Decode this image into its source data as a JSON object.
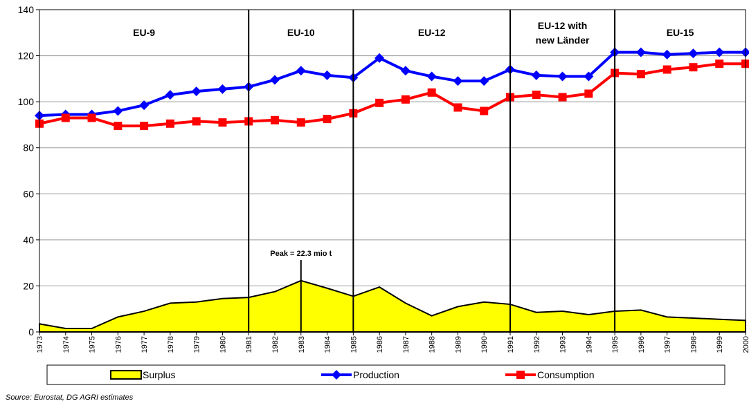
{
  "chart_data": {
    "type": "line",
    "x": [
      1973,
      1974,
      1975,
      1976,
      1977,
      1978,
      1979,
      1980,
      1981,
      1982,
      1983,
      1984,
      1985,
      1986,
      1987,
      1988,
      1989,
      1990,
      1991,
      1992,
      1993,
      1994,
      1995,
      1996,
      1997,
      1998,
      1999,
      2000
    ],
    "xlim": [
      1973,
      2000
    ],
    "ylim": [
      0,
      140
    ],
    "yticks": [
      0,
      20,
      40,
      60,
      80,
      100,
      120,
      140
    ],
    "grid": true,
    "series": [
      {
        "name": "Surplus",
        "kind": "area",
        "color": "#ffff00",
        "values": [
          3.5,
          1.5,
          1.5,
          6.5,
          9,
          12.5,
          13,
          14.5,
          15,
          17.5,
          22.3,
          19,
          15.5,
          19.5,
          12.5,
          7,
          11,
          13,
          12,
          8.5,
          9,
          7.5,
          9,
          9.5,
          6.5,
          6,
          5.5,
          5
        ]
      },
      {
        "name": "Production",
        "kind": "line",
        "marker": "diamond",
        "color": "#0000ff",
        "values": [
          94,
          94.5,
          94.5,
          96,
          98.5,
          103,
          104.5,
          105.5,
          106.5,
          109.5,
          113.5,
          111.5,
          110.5,
          119,
          113.5,
          111,
          109,
          109,
          114,
          111.5,
          111,
          111,
          121.5,
          121.5,
          120.5,
          121,
          121.5,
          121.5
        ]
      },
      {
        "name": "Consumption",
        "kind": "line",
        "marker": "square",
        "color": "#ff0000",
        "values": [
          90.5,
          93,
          93,
          89.5,
          89.5,
          90.5,
          91.5,
          91,
          91.5,
          92,
          91,
          92.5,
          95,
          99.5,
          101,
          104,
          97.5,
          96,
          102,
          103,
          102,
          103.5,
          112.5,
          112,
          114,
          115,
          116.5,
          116.5
        ]
      }
    ],
    "dividers": [
      1981,
      1985,
      1991,
      1995
    ],
    "periods": [
      {
        "lines": [
          "EU-9"
        ]
      },
      {
        "lines": [
          "EU-10"
        ]
      },
      {
        "lines": [
          "EU-12"
        ]
      },
      {
        "lines": [
          "EU-12 with",
          "new Länder"
        ]
      },
      {
        "lines": [
          "EU-15"
        ]
      }
    ],
    "annotation": {
      "text": "Peak = 22.3 mio t",
      "x": 1983
    },
    "source": "Source:  Eurostat, DG AGRI estimates"
  }
}
